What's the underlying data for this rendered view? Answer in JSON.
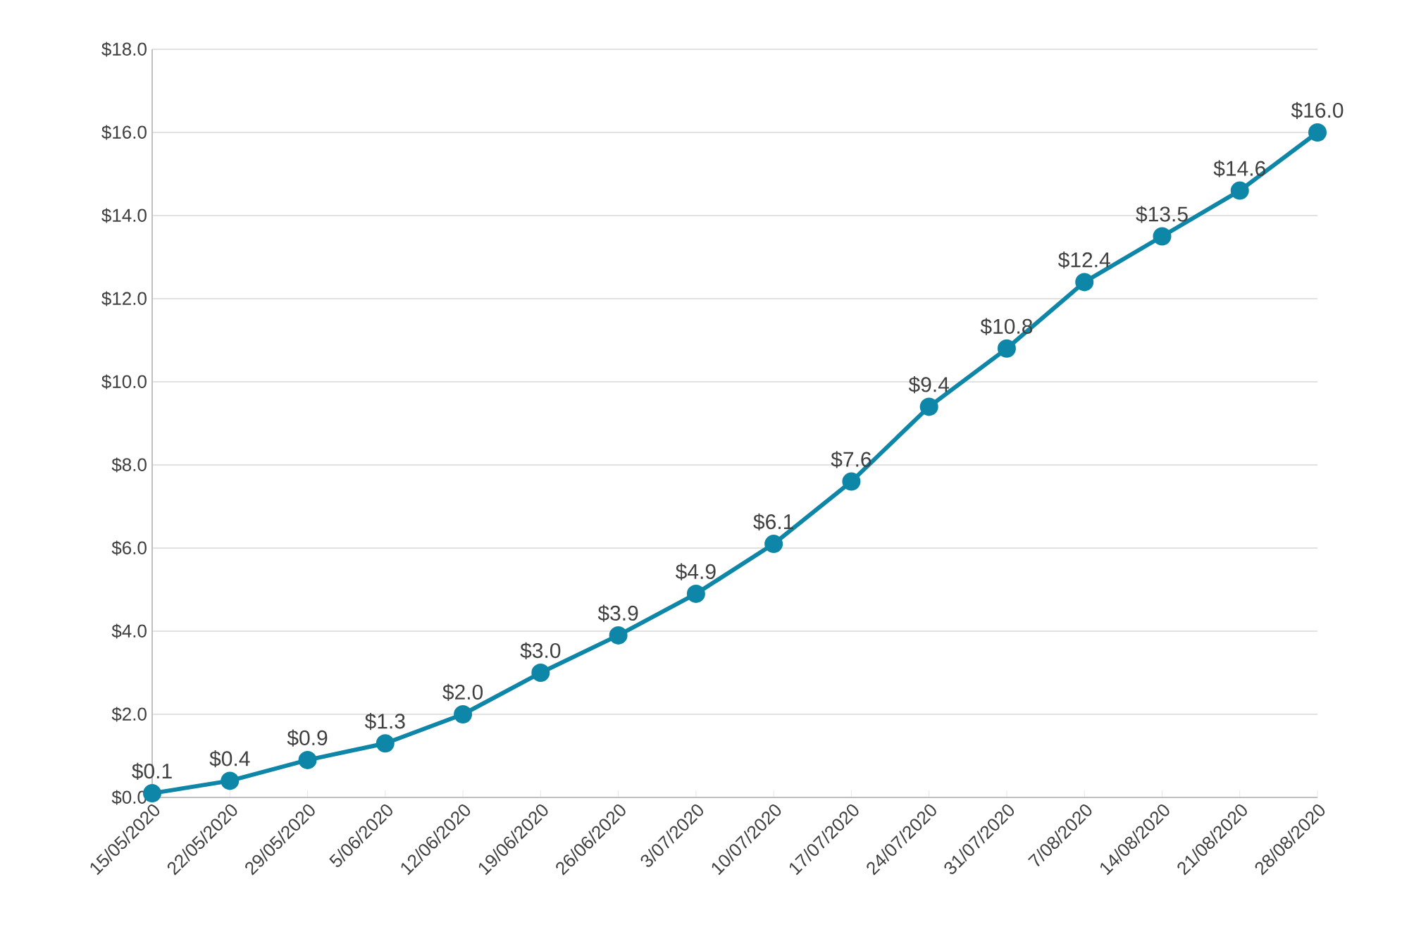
{
  "chart_data": {
    "type": "line",
    "categories": [
      "15/05/2020",
      "22/05/2020",
      "29/05/2020",
      "5/06/2020",
      "12/06/2020",
      "19/06/2020",
      "26/06/2020",
      "3/07/2020",
      "10/07/2020",
      "17/07/2020",
      "24/07/2020",
      "31/07/2020",
      "7/08/2020",
      "14/08/2020",
      "21/08/2020",
      "28/08/2020"
    ],
    "series": [
      {
        "color": "#0e86a8",
        "values": [
          0.1,
          0.4,
          0.9,
          1.3,
          2.0,
          3.0,
          3.9,
          4.9,
          6.1,
          7.6,
          9.4,
          10.8,
          12.4,
          13.5,
          14.6,
          16.0
        ],
        "value_labels": [
          "$0.1",
          "$0.4",
          "$0.9",
          "$1.3",
          "$2.0",
          "$3.0",
          "$3.9",
          "$4.9",
          "$6.1",
          "$7.6",
          "$9.4",
          "$10.8",
          "$12.4",
          "$13.5",
          "$14.6",
          "$16.0"
        ]
      }
    ],
    "ylim": [
      0,
      18
    ],
    "yticks": [
      {
        "value": 0,
        "label": "$0.0"
      },
      {
        "value": 2,
        "label": "$2.0"
      },
      {
        "value": 4,
        "label": "$4.0"
      },
      {
        "value": 6,
        "label": "$6.0"
      },
      {
        "value": 8,
        "label": "$8.0"
      },
      {
        "value": 10,
        "label": "$10.0"
      },
      {
        "value": 12,
        "label": "$12.0"
      },
      {
        "value": 14,
        "label": "$14.0"
      },
      {
        "value": 16,
        "label": "$16.0"
      },
      {
        "value": 18,
        "label": "$18.0"
      }
    ],
    "grid": "y",
    "marker": "circle",
    "line_style": "solid"
  }
}
